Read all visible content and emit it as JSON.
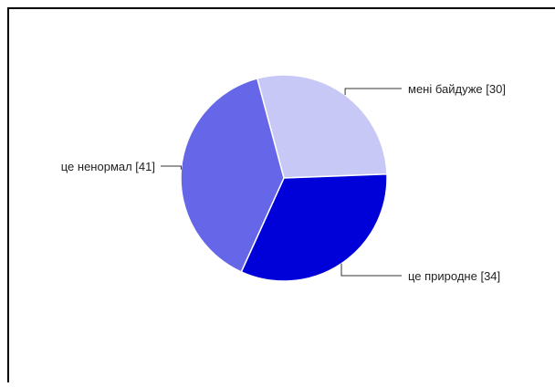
{
  "chart_data": {
    "type": "pie",
    "title": "",
    "slices": [
      {
        "label": "мені байдуже [30]",
        "value": 30,
        "color": "#c8c8f6"
      },
      {
        "label": "це природне  [34]",
        "value": 34,
        "color": "#0000d8"
      },
      {
        "label": "це  ненормал [41]",
        "value": 41,
        "color": "#6666e8"
      }
    ],
    "start_angle_deg": -15,
    "border_color": "#000000",
    "slice_edge_color": "#ffffff",
    "leader_color": "#333333"
  }
}
